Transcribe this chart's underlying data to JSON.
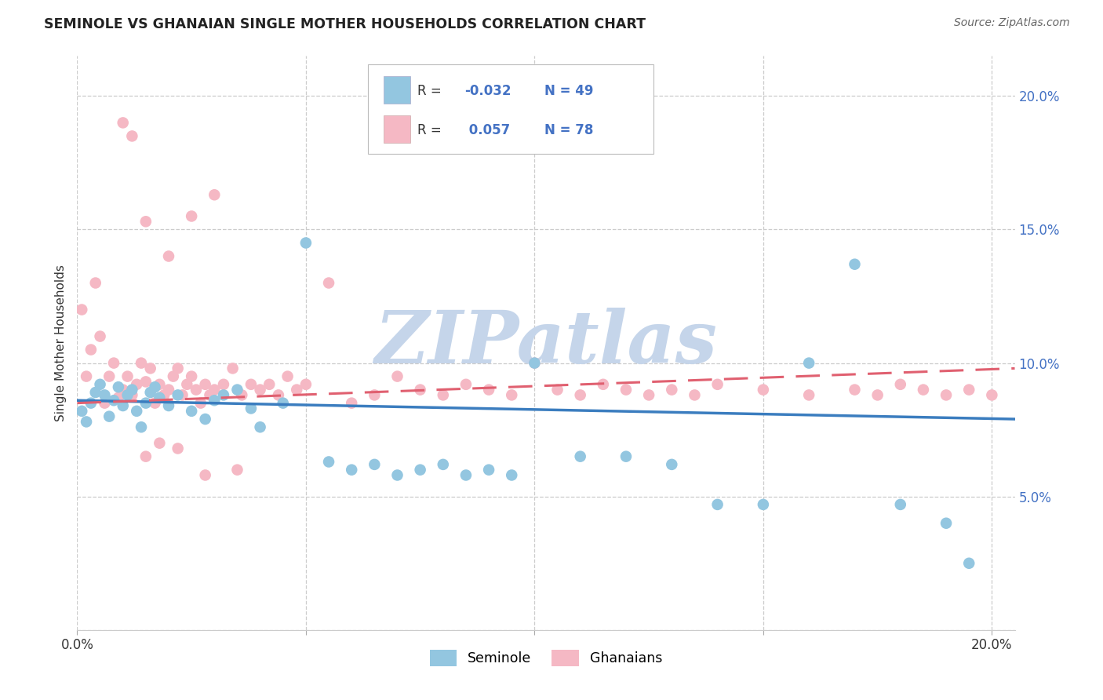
{
  "title": "SEMINOLE VS GHANAIAN SINGLE MOTHER HOUSEHOLDS CORRELATION CHART",
  "source_text": "Source: ZipAtlas.com",
  "ylabel": "Single Mother Households",
  "xlim": [
    0.0,
    0.205
  ],
  "ylim": [
    0.0,
    0.215
  ],
  "xticks": [
    0.0,
    0.05,
    0.1,
    0.15,
    0.2
  ],
  "xtick_labels": [
    "0.0%",
    "",
    "",
    "",
    "20.0%"
  ],
  "yticks": [
    0.0,
    0.05,
    0.1,
    0.15,
    0.2
  ],
  "ytick_labels_right": [
    "",
    "5.0%",
    "10.0%",
    "15.0%",
    "20.0%"
  ],
  "seminole_color": "#93c6e0",
  "ghanaian_color": "#f5b8c4",
  "seminole_line_color": "#3b7dbf",
  "ghanaian_line_color": "#e06070",
  "seminole_R": -0.032,
  "seminole_N": 49,
  "ghanaian_R": 0.057,
  "ghanaian_N": 78,
  "watermark": "ZIPatlas",
  "watermark_color": "#c5d5ea",
  "background_color": "#ffffff",
  "grid_color": "#cccccc",
  "seminole_x": [
    0.001,
    0.002,
    0.003,
    0.004,
    0.005,
    0.006,
    0.007,
    0.008,
    0.009,
    0.01,
    0.011,
    0.012,
    0.013,
    0.014,
    0.015,
    0.016,
    0.017,
    0.018,
    0.02,
    0.022,
    0.025,
    0.028,
    0.03,
    0.032,
    0.035,
    0.038,
    0.04,
    0.045,
    0.05,
    0.055,
    0.06,
    0.065,
    0.07,
    0.075,
    0.08,
    0.085,
    0.09,
    0.095,
    0.1,
    0.11,
    0.12,
    0.13,
    0.14,
    0.15,
    0.16,
    0.17,
    0.18,
    0.19,
    0.195
  ],
  "seminole_y": [
    0.082,
    0.078,
    0.085,
    0.089,
    0.092,
    0.088,
    0.08,
    0.086,
    0.091,
    0.084,
    0.088,
    0.09,
    0.082,
    0.076,
    0.085,
    0.089,
    0.091,
    0.087,
    0.084,
    0.088,
    0.082,
    0.079,
    0.086,
    0.088,
    0.09,
    0.083,
    0.076,
    0.085,
    0.145,
    0.063,
    0.06,
    0.062,
    0.058,
    0.06,
    0.062,
    0.058,
    0.06,
    0.058,
    0.1,
    0.065,
    0.065,
    0.062,
    0.047,
    0.047,
    0.1,
    0.137,
    0.047,
    0.04,
    0.025
  ],
  "ghanaian_x": [
    0.001,
    0.002,
    0.003,
    0.004,
    0.005,
    0.006,
    0.007,
    0.008,
    0.009,
    0.01,
    0.011,
    0.012,
    0.013,
    0.014,
    0.015,
    0.016,
    0.017,
    0.018,
    0.019,
    0.02,
    0.021,
    0.022,
    0.023,
    0.024,
    0.025,
    0.026,
    0.027,
    0.028,
    0.029,
    0.03,
    0.032,
    0.034,
    0.036,
    0.038,
    0.04,
    0.042,
    0.044,
    0.046,
    0.048,
    0.05,
    0.055,
    0.06,
    0.065,
    0.07,
    0.075,
    0.08,
    0.085,
    0.09,
    0.095,
    0.1,
    0.105,
    0.11,
    0.115,
    0.12,
    0.125,
    0.13,
    0.135,
    0.14,
    0.15,
    0.16,
    0.17,
    0.175,
    0.18,
    0.185,
    0.19,
    0.195,
    0.2,
    0.01,
    0.012,
    0.015,
    0.02,
    0.025,
    0.03,
    0.035,
    0.018,
    0.022,
    0.028,
    0.015
  ],
  "ghanaian_y": [
    0.12,
    0.095,
    0.105,
    0.13,
    0.11,
    0.085,
    0.095,
    0.1,
    0.087,
    0.09,
    0.095,
    0.088,
    0.092,
    0.1,
    0.093,
    0.098,
    0.085,
    0.092,
    0.088,
    0.09,
    0.095,
    0.098,
    0.088,
    0.092,
    0.095,
    0.09,
    0.085,
    0.092,
    0.088,
    0.09,
    0.092,
    0.098,
    0.088,
    0.092,
    0.09,
    0.092,
    0.088,
    0.095,
    0.09,
    0.092,
    0.13,
    0.085,
    0.088,
    0.095,
    0.09,
    0.088,
    0.092,
    0.09,
    0.088,
    0.1,
    0.09,
    0.088,
    0.092,
    0.09,
    0.088,
    0.09,
    0.088,
    0.092,
    0.09,
    0.088,
    0.09,
    0.088,
    0.092,
    0.09,
    0.088,
    0.09,
    0.088,
    0.19,
    0.185,
    0.153,
    0.14,
    0.155,
    0.163,
    0.06,
    0.07,
    0.068,
    0.058,
    0.065
  ]
}
